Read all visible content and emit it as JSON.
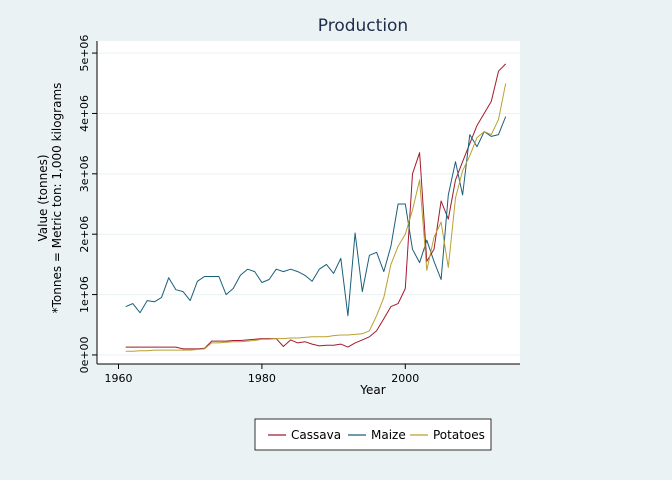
{
  "chart_data": {
    "type": "line",
    "title": "Production",
    "xlabel": "Year",
    "ylabel_lines": [
      "Value (tonnes)",
      "*Tonnes = Metric ton: 1,000 kilograms"
    ],
    "xlim": [
      1957,
      2016
    ],
    "ylim": [
      -150000,
      5200000
    ],
    "x_ticks": [
      1960,
      1980,
      2000
    ],
    "y_ticks": [
      0,
      1000000,
      2000000,
      3000000,
      4000000,
      5000000
    ],
    "y_tick_labels": [
      "0e+00",
      "1e+06",
      "2e+06",
      "3e+06",
      "4e+06",
      "5e+06"
    ],
    "grid": true,
    "legend_position": "bottom",
    "colors": {
      "background": "#eaf2f3",
      "plot_background": "#ffffff",
      "grid": "#eaf2f3"
    },
    "x": [
      1961,
      1962,
      1963,
      1964,
      1965,
      1966,
      1967,
      1968,
      1969,
      1970,
      1971,
      1972,
      1973,
      1974,
      1975,
      1976,
      1977,
      1978,
      1979,
      1980,
      1981,
      1982,
      1983,
      1984,
      1985,
      1986,
      1987,
      1988,
      1989,
      1990,
      1991,
      1992,
      1993,
      1994,
      1995,
      1996,
      1997,
      1998,
      1999,
      2000,
      2001,
      2002,
      2003,
      2004,
      2005,
      2006,
      2007,
      2008,
      2009,
      2010,
      2011,
      2012,
      2013,
      2014
    ],
    "series": [
      {
        "name": "Cassava",
        "color": "#a31a2e",
        "values": [
          130000,
          130000,
          130000,
          130000,
          130000,
          130000,
          130000,
          130000,
          100000,
          100000,
          100000,
          110000,
          230000,
          230000,
          230000,
          240000,
          240000,
          250000,
          260000,
          270000,
          270000,
          270000,
          140000,
          250000,
          200000,
          220000,
          180000,
          150000,
          160000,
          160000,
          180000,
          130000,
          200000,
          250000,
          300000,
          400000,
          600000,
          800000,
          850000,
          1100000,
          3000000,
          3350000,
          1550000,
          1750000,
          2550000,
          2250000,
          2900000,
          3200000,
          3500000,
          3800000,
          4000000,
          4200000,
          4700000,
          4820000
        ]
      },
      {
        "name": "Maize",
        "color": "#1a5f7a",
        "values": [
          800000,
          850000,
          700000,
          900000,
          880000,
          950000,
          1280000,
          1080000,
          1050000,
          900000,
          1220000,
          1300000,
          1300000,
          1300000,
          1000000,
          1100000,
          1320000,
          1420000,
          1380000,
          1200000,
          1250000,
          1420000,
          1380000,
          1420000,
          1380000,
          1320000,
          1220000,
          1420000,
          1500000,
          1350000,
          1600000,
          650000,
          2020000,
          1050000,
          1650000,
          1700000,
          1380000,
          1800000,
          2500000,
          2500000,
          1750000,
          1530000,
          1900000,
          1550000,
          1250000,
          2650000,
          3200000,
          2650000,
          3650000,
          3450000,
          3700000,
          3620000,
          3650000,
          3950000
        ]
      },
      {
        "name": "Potatoes",
        "color": "#b8a132",
        "values": [
          60000,
          60000,
          70000,
          70000,
          80000,
          80000,
          80000,
          80000,
          80000,
          80000,
          90000,
          100000,
          200000,
          200000,
          210000,
          220000,
          220000,
          230000,
          240000,
          260000,
          260000,
          270000,
          270000,
          280000,
          280000,
          290000,
          300000,
          300000,
          300000,
          320000,
          330000,
          330000,
          340000,
          350000,
          400000,
          650000,
          950000,
          1500000,
          1800000,
          2000000,
          2400000,
          2900000,
          1400000,
          1950000,
          2200000,
          1450000,
          2600000,
          3050000,
          3300000,
          3600000,
          3700000,
          3650000,
          3900000,
          4500000
        ]
      }
    ]
  }
}
